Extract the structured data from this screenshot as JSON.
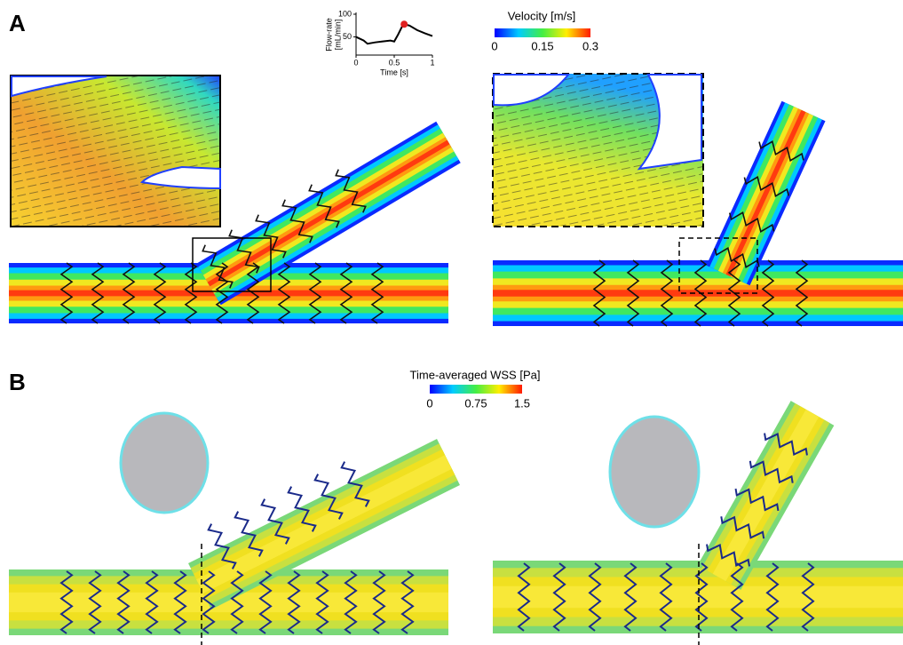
{
  "panels": {
    "a": {
      "letter": "A"
    },
    "b": {
      "letter": "B"
    }
  },
  "velocity_colorbar": {
    "title": "Velocity [m/s]",
    "lim": [
      0,
      0.3
    ],
    "ticks": [
      0,
      0.15,
      0.3
    ]
  },
  "wss_colorbar": {
    "title": "Time-averaged WSS [Pa]",
    "lim": [
      0,
      1.5
    ],
    "ticks": [
      0,
      0.75,
      1.5
    ]
  },
  "chart_data": {
    "type": "line",
    "ylabel": [
      "Flow-rate",
      "[mL/min]"
    ],
    "xlabel": "Time [s]",
    "x": [
      0,
      0.1,
      0.15,
      0.25,
      0.35,
      0.45,
      0.5,
      0.55,
      0.6,
      0.63,
      0.7,
      0.8,
      0.9,
      1.0
    ],
    "values": [
      50,
      42,
      35,
      38,
      40,
      42,
      40,
      55,
      72,
      78,
      75,
      65,
      58,
      52
    ],
    "highlight_index": 9,
    "color": "#000000",
    "highlight_color": "#e02020",
    "xlim": [
      0,
      1
    ],
    "ylim": [
      10,
      100
    ],
    "xticks": [
      0,
      0.5,
      1
    ],
    "yticks": [
      50,
      100
    ]
  }
}
